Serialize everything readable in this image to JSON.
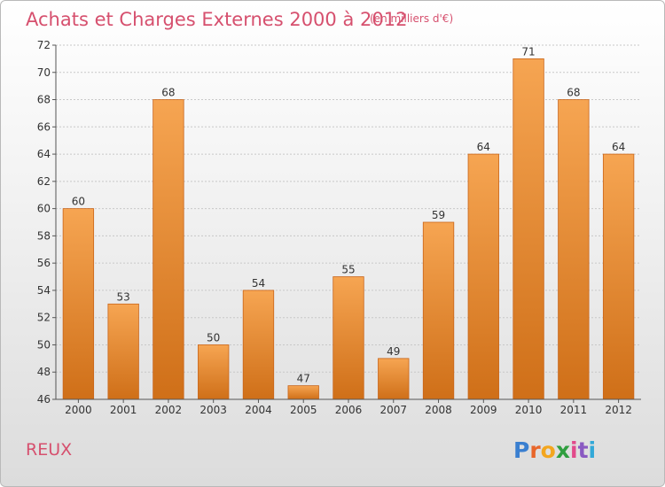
{
  "chart_data": {
    "type": "bar",
    "title": "Achats et Charges Externes 2000 à 2012",
    "unit": "(en milliers d'€)",
    "categories": [
      "2000",
      "2001",
      "2002",
      "2003",
      "2004",
      "2005",
      "2006",
      "2007",
      "2008",
      "2009",
      "2010",
      "2011",
      "2012"
    ],
    "values": [
      60,
      53,
      68,
      50,
      54,
      47,
      55,
      49,
      59,
      64,
      71,
      68,
      64
    ],
    "ylim": [
      46,
      72
    ],
    "yticks": [
      46,
      48,
      50,
      52,
      54,
      56,
      58,
      60,
      62,
      64,
      66,
      68,
      70,
      72
    ],
    "grid": true,
    "xlabel": "",
    "ylabel": ""
  },
  "commune": "REUX",
  "brand": {
    "letters": [
      "P",
      "r",
      "o",
      "x",
      "i",
      "t",
      "i"
    ],
    "colors": [
      "#3a7fd0",
      "#e8662a",
      "#f3a61f",
      "#2f9e3f",
      "#e24a8b",
      "#8a5ac2",
      "#33a9d8"
    ]
  },
  "colors": {
    "bar_top": "#f6a552",
    "bar_bottom": "#cf6f18",
    "bar_edge": "#c9651a",
    "grid": "#c8c8c8",
    "axis": "#555555",
    "title": "#d6506e"
  }
}
